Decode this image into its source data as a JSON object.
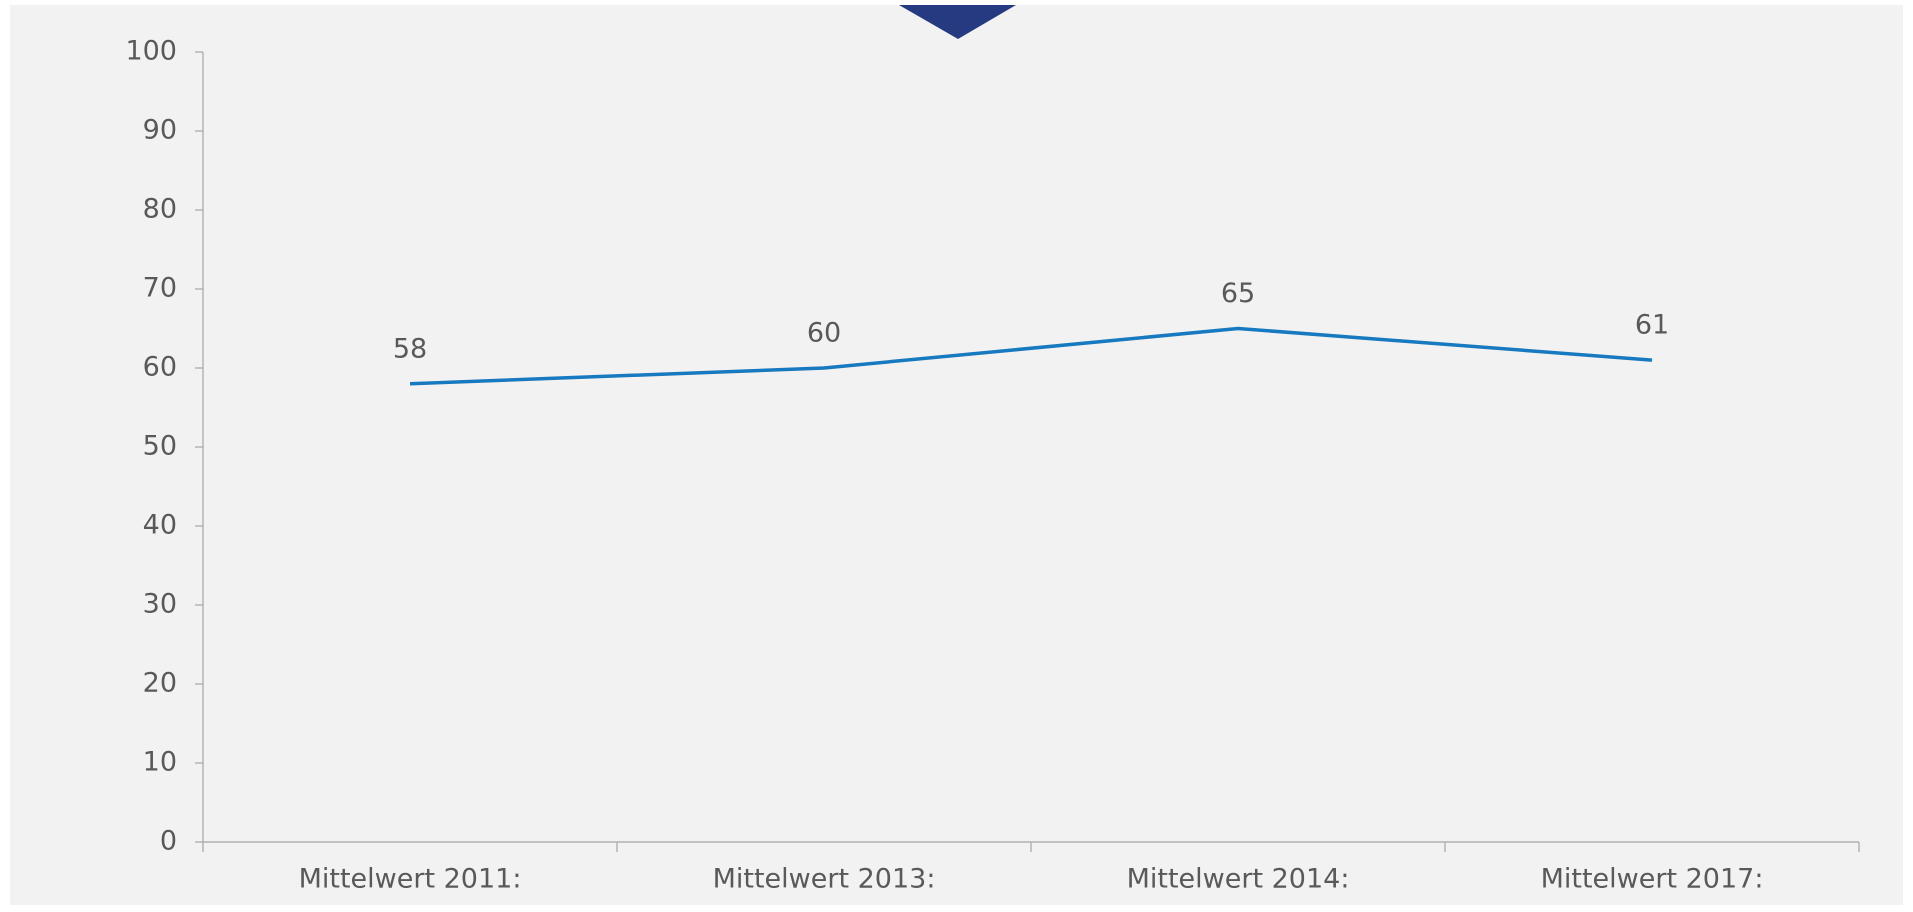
{
  "chart_data": {
    "type": "line",
    "categories": [
      "Mittelwert 2011:",
      "Mittelwert 2013:",
      "Mittelwert 2014:",
      "Mittelwert 2017:"
    ],
    "series": [
      {
        "name": "Mittelwert",
        "color": "#1779bf",
        "values": [
          58,
          60,
          65,
          61
        ]
      }
    ],
    "ylim": [
      0,
      100
    ],
    "yticks": [
      0,
      10,
      20,
      30,
      40,
      50,
      60,
      70,
      80,
      90,
      100
    ],
    "data_labels": true,
    "grid": false
  }
}
